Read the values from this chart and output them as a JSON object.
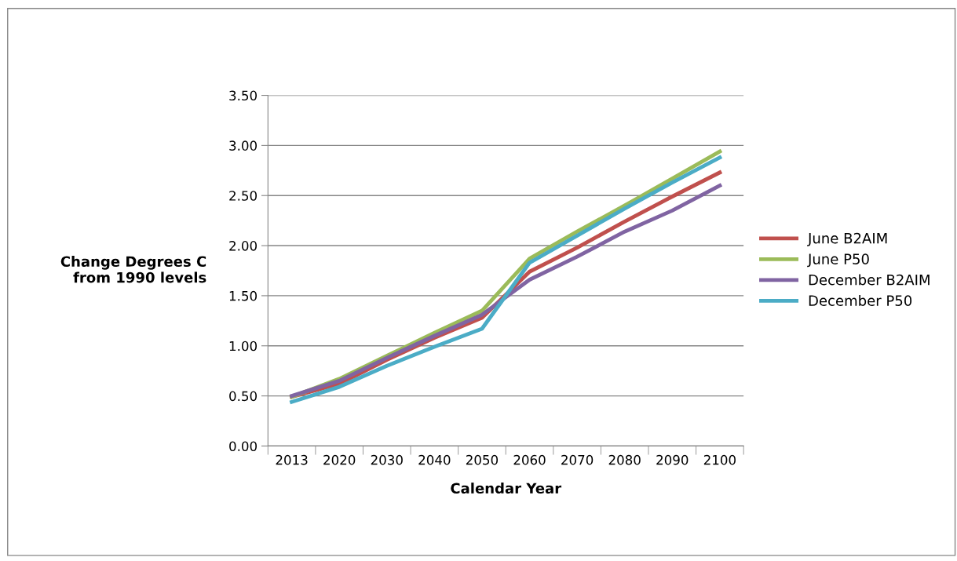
{
  "chart_data": {
    "type": "line",
    "xlabel": "Calendar Year",
    "ylabel": "Change Degrees C\nfrom 1990 levels",
    "categories": [
      "2013",
      "2020",
      "2030",
      "2040",
      "2050",
      "2060",
      "2070",
      "2080",
      "2090",
      "2100"
    ],
    "series": [
      {
        "name": "June B2AIM",
        "color": "#c0504d",
        "values": [
          0.49,
          0.62,
          0.86,
          1.08,
          1.28,
          1.74,
          1.98,
          2.24,
          2.49,
          2.73
        ]
      },
      {
        "name": "June P50",
        "color": "#9bbb59",
        "values": [
          0.49,
          0.67,
          0.9,
          1.13,
          1.35,
          1.87,
          2.14,
          2.4,
          2.67,
          2.94
        ]
      },
      {
        "name": "December B2AIM",
        "color": "#8064a2",
        "values": [
          0.5,
          0.65,
          0.88,
          1.1,
          1.31,
          1.66,
          1.89,
          2.14,
          2.35,
          2.6
        ]
      },
      {
        "name": "December P50",
        "color": "#4bacc6",
        "values": [
          0.44,
          0.59,
          0.8,
          0.99,
          1.17,
          1.83,
          2.1,
          2.37,
          2.63,
          2.88
        ]
      }
    ],
    "ylim": [
      0,
      3.5
    ],
    "yticks": [
      {
        "value": 0,
        "label": "0.00"
      },
      {
        "value": 0.5,
        "label": "0.50"
      },
      {
        "value": 1,
        "label": "1.00"
      },
      {
        "value": 1.5,
        "label": "1.50"
      },
      {
        "value": 2,
        "label": "2.00"
      },
      {
        "value": 2.5,
        "label": "2.50"
      },
      {
        "value": 3,
        "label": "3.00"
      },
      {
        "value": 3.5,
        "label": "3.50"
      }
    ],
    "grid": "y",
    "legend": "right",
    "marker": "none",
    "line_style": "solid"
  }
}
